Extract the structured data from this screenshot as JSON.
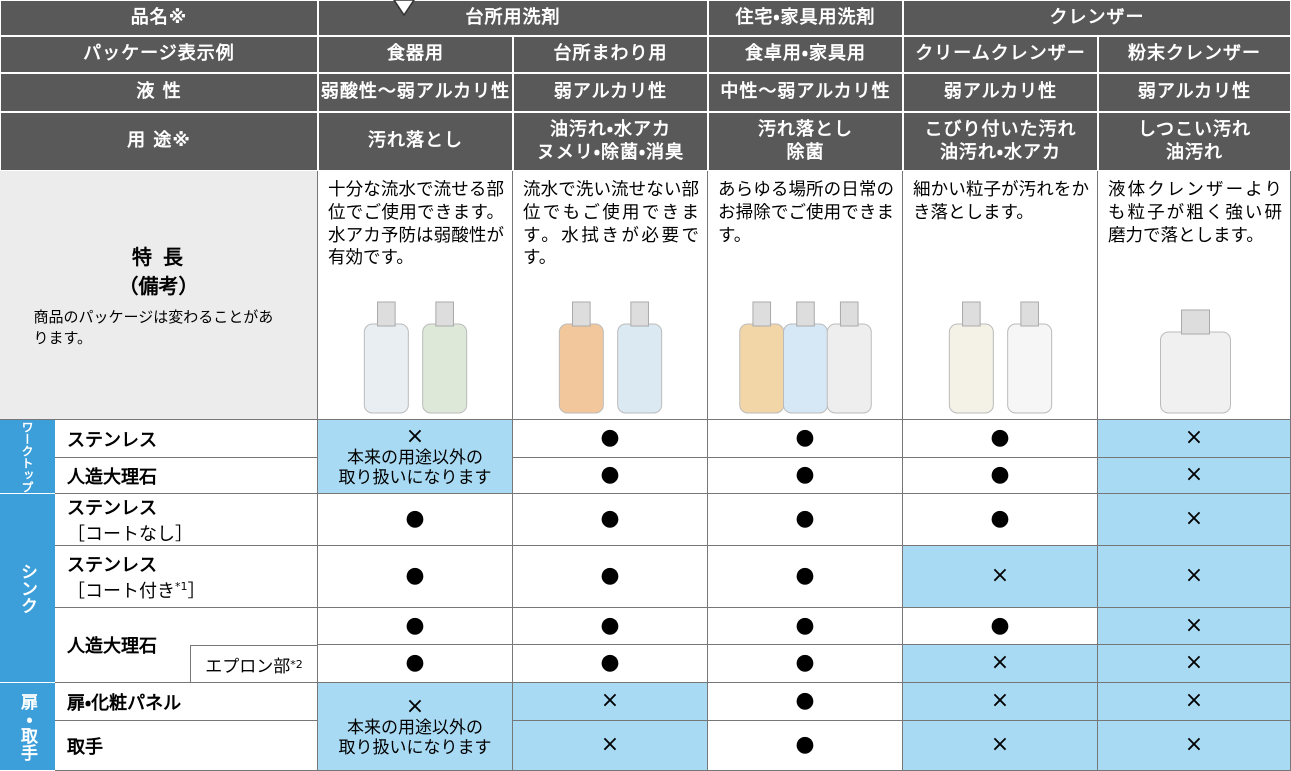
{
  "header": {
    "row1": {
      "label": "品名※",
      "groups": [
        "台所用洗剤",
        "住宅・家具用洗剤",
        "クレンザー"
      ]
    },
    "row2": {
      "label": "パッケージ表示例",
      "cells": [
        "食器用",
        "台所まわり用",
        "食卓用・家具用",
        "クリームクレンザー",
        "粉末クレンザー"
      ]
    },
    "row3": {
      "label": "液 性",
      "cells": [
        "弱酸性〜弱アルカリ性",
        "弱アルカリ性",
        "中性〜弱アルカリ性",
        "弱アルカリ性",
        "弱アルカリ性"
      ]
    },
    "row4": {
      "label": "用 途※",
      "cells": [
        [
          "汚れ落とし"
        ],
        [
          "油汚れ・水アカ",
          "ヌメリ・除菌・消臭"
        ],
        [
          "汚れ落とし",
          "除菌"
        ],
        [
          "こびり付いた汚れ",
          "油汚れ・水アカ"
        ],
        [
          "しつこい汚れ",
          "油汚れ"
        ]
      ]
    }
  },
  "features": {
    "title": "特 長",
    "subtitle": "（備考）",
    "note": "商品のパッケージは変わることがあります。",
    "cells": [
      "十分な流水で流せる部位でご使用できます。水アカ予防は弱酸性が有効です。",
      "流水で洗い流せない部位でもご使用できます。水拭きが必要です。",
      "あらゆる場所の日常のお掃除でご使用できます。",
      "細かい粒子が汚れをかき落とします。",
      "液体クレンザーよりも粒子が粗く強い研磨力で落とします。"
    ]
  },
  "groups": [
    {
      "label": "ワークトップ",
      "merged_first": {
        "mark": "×",
        "note": [
          "本来の用途以外の",
          "取り扱いになります"
        ],
        "fill": "#a9daf3"
      },
      "rows": [
        {
          "name": "ステンレス",
          "cells": [
            {
              "mark": "●"
            },
            {
              "mark": "●"
            },
            {
              "mark": "●"
            },
            {
              "mark": "×",
              "fill": "#a9daf3"
            }
          ]
        },
        {
          "name": "人造大理石",
          "cells": [
            {
              "mark": "●"
            },
            {
              "mark": "●"
            },
            {
              "mark": "●"
            },
            {
              "mark": "×",
              "fill": "#a9daf3"
            }
          ]
        }
      ]
    },
    {
      "label": "シンク",
      "rows": [
        {
          "name": "ステンレス",
          "sub": "［コートなし］",
          "cells": [
            {
              "mark": "●"
            },
            {
              "mark": "●"
            },
            {
              "mark": "●"
            },
            {
              "mark": "●"
            },
            {
              "mark": "×",
              "fill": "#a9daf3"
            }
          ]
        },
        {
          "name": "ステンレス",
          "sub": "［コート付き",
          "sub_mark": "*1",
          "sub_end": "］",
          "cells": [
            {
              "mark": "●"
            },
            {
              "mark": "●"
            },
            {
              "mark": "●"
            },
            {
              "mark": "×",
              "fill": "#a9daf3"
            },
            {
              "mark": "×",
              "fill": "#a9daf3"
            }
          ]
        },
        {
          "name": "人造大理石",
          "cells": [
            {
              "mark": "●"
            },
            {
              "mark": "●"
            },
            {
              "mark": "●"
            },
            {
              "mark": "●"
            },
            {
              "mark": "×",
              "fill": "#a9daf3"
            }
          ],
          "subrow": {
            "name": "エプロン部",
            "mark": "*2",
            "cells": [
              {
                "mark": "●"
              },
              {
                "mark": "●"
              },
              {
                "mark": "●"
              },
              {
                "mark": "×",
                "fill": "#a9daf3"
              },
              {
                "mark": "×",
                "fill": "#a9daf3"
              }
            ]
          }
        }
      ]
    },
    {
      "label": "扉・取手",
      "merged_first": {
        "mark": "×",
        "note": [
          "本来の用途以外の",
          "取り扱いになります"
        ],
        "fill": "#a9daf3"
      },
      "rows": [
        {
          "name": "扉・化粧パネル",
          "cells": [
            {
              "mark": "×",
              "fill": "#a9daf3"
            },
            {
              "mark": "●"
            },
            {
              "mark": "×",
              "fill": "#a9daf3"
            },
            {
              "mark": "×",
              "fill": "#a9daf3"
            }
          ]
        },
        {
          "name": "取手",
          "cells": [
            {
              "mark": "×",
              "fill": "#a9daf3"
            },
            {
              "mark": "●"
            },
            {
              "mark": "×",
              "fill": "#a9daf3"
            },
            {
              "mark": "×",
              "fill": "#a9daf3"
            }
          ]
        }
      ]
    }
  ]
}
